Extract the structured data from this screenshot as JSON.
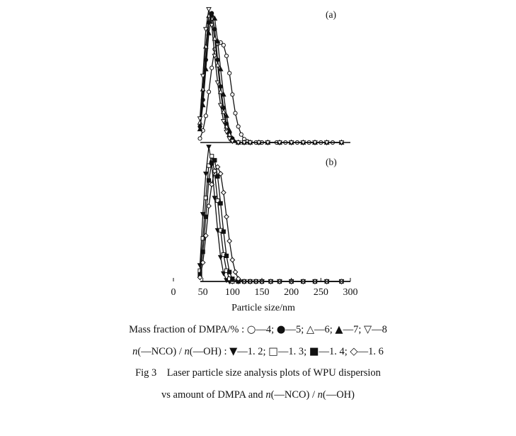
{
  "chart_data": [
    {
      "type": "line",
      "panel_label": "(a)",
      "xlim": [
        0,
        300
      ],
      "ylim": [
        0,
        1
      ],
      "legend_title": "Mass fraction of DMPA/%",
      "series": [
        {
          "name": "4",
          "marker": "open-circle",
          "x": [
            45,
            50,
            55,
            60,
            65,
            70,
            75,
            80,
            85,
            90,
            95,
            100,
            105,
            110,
            115,
            120,
            125,
            130,
            140,
            150,
            160,
            175,
            190,
            210,
            230,
            250,
            270,
            285
          ],
          "y": [
            0.03,
            0.09,
            0.2,
            0.38,
            0.56,
            0.7,
            0.74,
            0.75,
            0.73,
            0.65,
            0.52,
            0.36,
            0.22,
            0.12,
            0.06,
            0.025,
            0.01,
            0,
            0,
            0,
            0,
            0,
            0,
            0,
            0,
            0,
            0,
            0
          ]
        },
        {
          "name": "5",
          "marker": "filled-circle",
          "x": [
            45,
            50,
            55,
            60,
            65,
            70,
            75,
            80,
            85,
            90,
            95,
            100,
            110,
            120,
            130,
            145,
            160,
            180,
            200,
            220,
            240,
            260,
            285
          ],
          "y": [
            0.12,
            0.32,
            0.62,
            0.9,
            0.97,
            0.85,
            0.62,
            0.42,
            0.26,
            0.14,
            0.07,
            0.03,
            0,
            0,
            0,
            0,
            0,
            0,
            0,
            0,
            0,
            0,
            0
          ]
        },
        {
          "name": "6",
          "marker": "open-triangle-up",
          "x": [
            45,
            50,
            55,
            60,
            65,
            70,
            75,
            80,
            85,
            90,
            95,
            100,
            110,
            120,
            130,
            145,
            160,
            180,
            200,
            220,
            240,
            260,
            285
          ],
          "y": [
            0.15,
            0.4,
            0.72,
            0.95,
            0.93,
            0.78,
            0.58,
            0.38,
            0.23,
            0.12,
            0.06,
            0.02,
            0,
            0,
            0,
            0,
            0,
            0,
            0,
            0,
            0,
            0,
            0
          ]
        },
        {
          "name": "7",
          "marker": "filled-triangle-up",
          "x": [
            45,
            50,
            55,
            60,
            65,
            70,
            75,
            80,
            85,
            90,
            95,
            100,
            110,
            120,
            130,
            145,
            160,
            180,
            200,
            220,
            240,
            260,
            285
          ],
          "y": [
            0.1,
            0.28,
            0.55,
            0.82,
            0.96,
            0.93,
            0.76,
            0.55,
            0.36,
            0.2,
            0.09,
            0.03,
            0,
            0,
            0,
            0,
            0,
            0,
            0,
            0,
            0,
            0,
            0
          ]
        },
        {
          "name": "8",
          "marker": "open-triangle-down",
          "x": [
            45,
            50,
            55,
            60,
            65,
            70,
            75,
            80,
            85,
            90,
            95,
            100,
            110,
            120,
            130,
            145,
            160,
            180,
            200,
            220,
            240,
            260,
            285
          ],
          "y": [
            0.18,
            0.5,
            0.85,
            1.0,
            0.88,
            0.65,
            0.45,
            0.28,
            0.16,
            0.08,
            0.03,
            0.01,
            0,
            0,
            0,
            0,
            0,
            0,
            0,
            0,
            0,
            0,
            0
          ]
        }
      ]
    },
    {
      "type": "line",
      "panel_label": "(b)",
      "xlabel": "Particle size/nm",
      "xticks": [
        0,
        50,
        100,
        150,
        200,
        250,
        300
      ],
      "xlim": [
        0,
        300
      ],
      "ylim": [
        0,
        1
      ],
      "legend_title": "n(—NCO)/n(—OH)",
      "series": [
        {
          "name": "1.2",
          "marker": "filled-triangle-down",
          "x": [
            45,
            50,
            55,
            60,
            65,
            70,
            75,
            80,
            85,
            90,
            95,
            100,
            110,
            120,
            130,
            140,
            150,
            165,
            180,
            200,
            220,
            240,
            260,
            285
          ],
          "y": [
            0.12,
            0.5,
            0.8,
            1.0,
            0.87,
            0.62,
            0.38,
            0.18,
            0.06,
            0.01,
            0,
            0,
            0,
            0,
            0,
            0,
            0,
            0,
            0,
            0,
            0,
            0,
            0,
            0
          ]
        },
        {
          "name": "1.3",
          "marker": "open-square",
          "x": [
            45,
            50,
            55,
            60,
            65,
            70,
            75,
            80,
            85,
            90,
            95,
            100,
            110,
            120,
            130,
            140,
            150,
            165,
            180,
            200,
            220,
            240,
            260,
            285
          ],
          "y": [
            0.08,
            0.32,
            0.62,
            0.86,
            0.93,
            0.8,
            0.6,
            0.38,
            0.2,
            0.08,
            0.02,
            0,
            0,
            0,
            0,
            0,
            0,
            0,
            0,
            0,
            0,
            0,
            0,
            0
          ]
        },
        {
          "name": "1.4",
          "marker": "filled-square",
          "x": [
            45,
            50,
            55,
            60,
            65,
            70,
            75,
            80,
            85,
            90,
            95,
            100,
            110,
            120,
            130,
            140,
            150,
            165,
            180,
            200,
            220,
            240,
            260,
            285
          ],
          "y": [
            0.05,
            0.22,
            0.48,
            0.75,
            0.88,
            0.9,
            0.78,
            0.58,
            0.37,
            0.19,
            0.07,
            0.02,
            0,
            0,
            0,
            0,
            0,
            0,
            0,
            0,
            0,
            0,
            0,
            0
          ]
        },
        {
          "name": "1.6",
          "marker": "open-diamond",
          "x": [
            45,
            50,
            55,
            60,
            65,
            70,
            75,
            80,
            85,
            90,
            95,
            100,
            105,
            110,
            120,
            130,
            140,
            150,
            165,
            180,
            200,
            220,
            240,
            260,
            285
          ],
          "y": [
            0.03,
            0.14,
            0.34,
            0.56,
            0.72,
            0.82,
            0.85,
            0.8,
            0.66,
            0.48,
            0.3,
            0.16,
            0.07,
            0.02,
            0,
            0,
            0,
            0,
            0,
            0,
            0,
            0,
            0,
            0,
            0
          ]
        }
      ]
    }
  ],
  "caption": {
    "legend1_prefix": "Mass fraction of DMPA/% :",
    "legend1_items": [
      {
        "symbol": "○",
        "label": "—4"
      },
      {
        "symbol": "●",
        "label": "—5"
      },
      {
        "symbol": "△",
        "label": "—6"
      },
      {
        "symbol": "▲",
        "label": "—7"
      },
      {
        "symbol": "▽",
        "label": "—8"
      }
    ],
    "legend2_prefix": "(—NCO) /",
    "legend2_mid": "(—OH) :",
    "legend2_italic": "n",
    "legend2_items": [
      {
        "symbol": "▼",
        "label": "—1. 2"
      },
      {
        "symbol": "□",
        "label": "—1. 3"
      },
      {
        "symbol": "■",
        "label": "—1. 4"
      },
      {
        "symbol": "◇",
        "label": "—1. 6"
      }
    ],
    "fig_number": "Fig 3",
    "title_line1": "Laser particle size analysis plots of WPU dispersion",
    "title_line2_pre": "vs amount of DMPA and",
    "title_line2_mid": "(—NCO) /",
    "title_line2_end": "(—OH)"
  }
}
